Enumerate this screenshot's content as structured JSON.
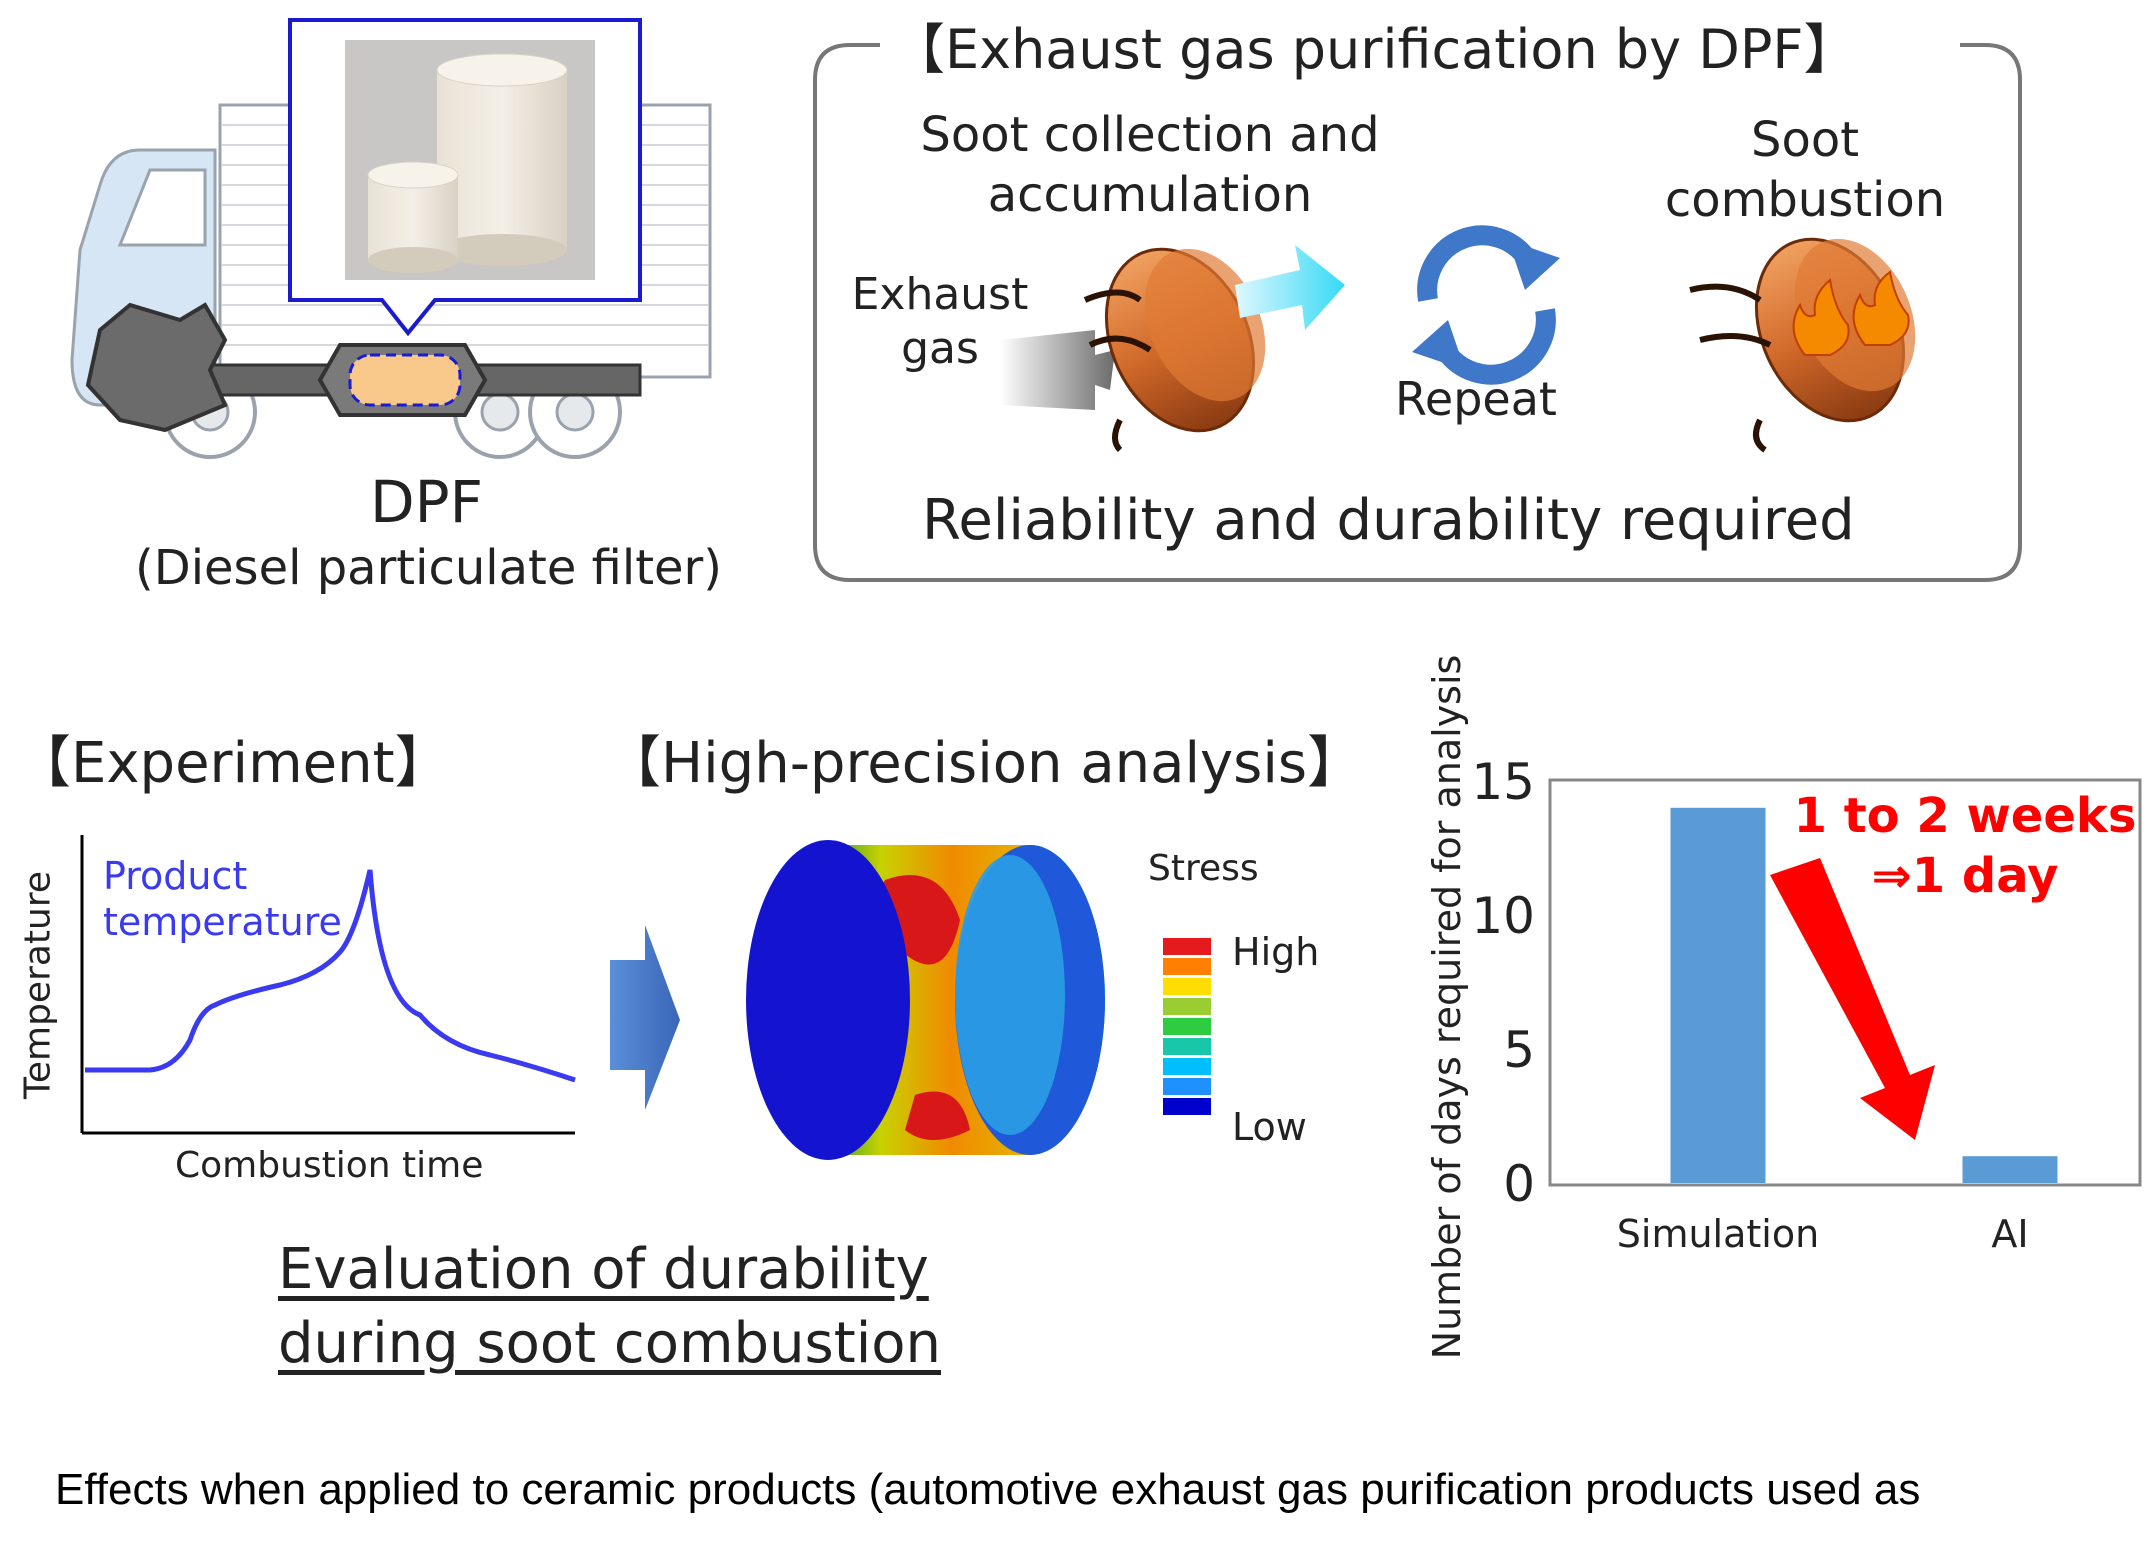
{
  "dpf": {
    "name": "DPF",
    "fullname": "(Diesel particulate filter)"
  },
  "purification": {
    "title": "【Exhaust gas purification by DPF】",
    "step1": [
      "Soot collection and",
      "accumulation"
    ],
    "step2": [
      "Soot",
      "combustion"
    ],
    "exhaust": [
      "Exhaust",
      "gas"
    ],
    "repeat": "Repeat",
    "requirement": "Reliability and durability required"
  },
  "experiment": {
    "title": "【Experiment】",
    "series_label": [
      "Product",
      "temperature"
    ],
    "ylabel": "Temperature",
    "xlabel": "Combustion time"
  },
  "analysis": {
    "title": "【High-precision analysis】",
    "legend_title": "Stress",
    "legend_high": "High",
    "legend_low": "Low",
    "legend_colors": [
      "#e41a1c",
      "#ff7f00",
      "#ffdd00",
      "#9acd32",
      "#2ecc40",
      "#17c7a8",
      "#00bfff",
      "#1e90ff",
      "#0000cd"
    ]
  },
  "evaluation": [
    "Evaluation of durability",
    "during soot combustion"
  ],
  "chart_data": {
    "type": "bar",
    "categories": [
      "Simulation",
      "AI"
    ],
    "values": [
      14,
      1
    ],
    "ylabel": "Number of days required for analysis",
    "ylim": [
      0,
      15
    ],
    "yticks": [
      0,
      5,
      10,
      15
    ],
    "annotation": [
      "1 to 2 weeks",
      "⇒1 day"
    ],
    "bar_color": "#5b9bd5"
  },
  "caption": "Effects when applied to ceramic products (automotive exhaust gas purification products used as"
}
